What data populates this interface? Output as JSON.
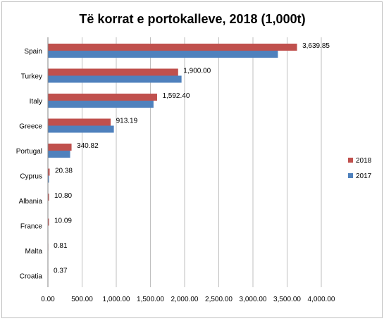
{
  "chart_data": {
    "type": "bar",
    "orientation": "horizontal",
    "title": "Të korrat e portokalleve, 2018 (1,000t)",
    "categories": [
      "Spain",
      "Turkey",
      "Italy",
      "Greece",
      "Portugal",
      "Cyprus",
      "Albania",
      "France",
      "Malta",
      "Croatia"
    ],
    "series": [
      {
        "name": "2018",
        "color": "#c0504d",
        "values": [
          3639.85,
          1900.0,
          1592.4,
          913.19,
          340.82,
          20.38,
          10.8,
          10.09,
          0.81,
          0.37
        ]
      },
      {
        "name": "2017",
        "color": "#4f81bd",
        "values": [
          3360,
          1950,
          1540,
          960,
          320,
          10,
          0,
          0,
          0,
          0
        ]
      }
    ],
    "data_labels": [
      "3,639.85",
      "1,900.00",
      "1,592.40",
      "913.19",
      "340.82",
      "20.38",
      "10.80",
      "10.09",
      "0.81",
      "0.37"
    ],
    "x_ticks": [
      "0.00",
      "500.00",
      "1,000.00",
      "1,500.00",
      "2,000.00",
      "2,500.00",
      "3,000.00",
      "3,500.00",
      "4,000.00"
    ],
    "xlim": [
      0,
      4000
    ],
    "grid": "vertical",
    "legend_position": "right"
  }
}
